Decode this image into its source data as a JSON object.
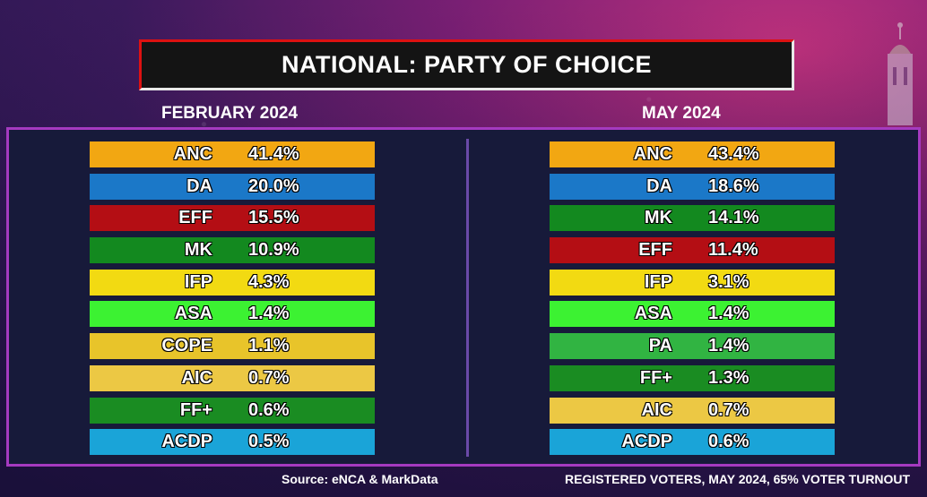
{
  "title": "NATIONAL: PARTY OF CHOICE",
  "left_heading": "FEBRUARY 2024",
  "right_heading": "MAY 2024",
  "february": [
    {
      "party": "ANC",
      "pct": "41.4%",
      "color": "#f2a712"
    },
    {
      "party": "DA",
      "pct": "20.0%",
      "color": "#1b78c8"
    },
    {
      "party": "EFF",
      "pct": "15.5%",
      "color": "#b40e14"
    },
    {
      "party": "MK",
      "pct": "10.9%",
      "color": "#13891f"
    },
    {
      "party": "IFP",
      "pct": "4.3%",
      "color": "#f2da12"
    },
    {
      "party": "ASA",
      "pct": "1.4%",
      "color": "#3cf232"
    },
    {
      "party": "COPE",
      "pct": "1.1%",
      "color": "#e8c42a"
    },
    {
      "party": "AIC",
      "pct": "0.7%",
      "color": "#ecc844"
    },
    {
      "party": "FF+",
      "pct": "0.6%",
      "color": "#1a8c22"
    },
    {
      "party": "ACDP",
      "pct": "0.5%",
      "color": "#1aa4d8"
    }
  ],
  "may": [
    {
      "party": "ANC",
      "pct": "43.4%",
      "color": "#f2a712"
    },
    {
      "party": "DA",
      "pct": "18.6%",
      "color": "#1b78c8"
    },
    {
      "party": "MK",
      "pct": "14.1%",
      "color": "#13891f"
    },
    {
      "party": "EFF",
      "pct": "11.4%",
      "color": "#b40e14"
    },
    {
      "party": "IFP",
      "pct": "3.1%",
      "color": "#f2da12"
    },
    {
      "party": "ASA",
      "pct": "1.4%",
      "color": "#3cf232"
    },
    {
      "party": "PA",
      "pct": "1.4%",
      "color": "#31b442"
    },
    {
      "party": "FF+",
      "pct": "1.3%",
      "color": "#1a8c22"
    },
    {
      "party": "AIC",
      "pct": "0.7%",
      "color": "#ecc844"
    },
    {
      "party": "ACDP",
      "pct": "0.6%",
      "color": "#1aa4d8"
    }
  ],
  "footer": {
    "source": "Source: eNCA & MarkData",
    "note": "REGISTERED VOTERS, MAY 2024, 65% VOTER TURNOUT"
  }
}
